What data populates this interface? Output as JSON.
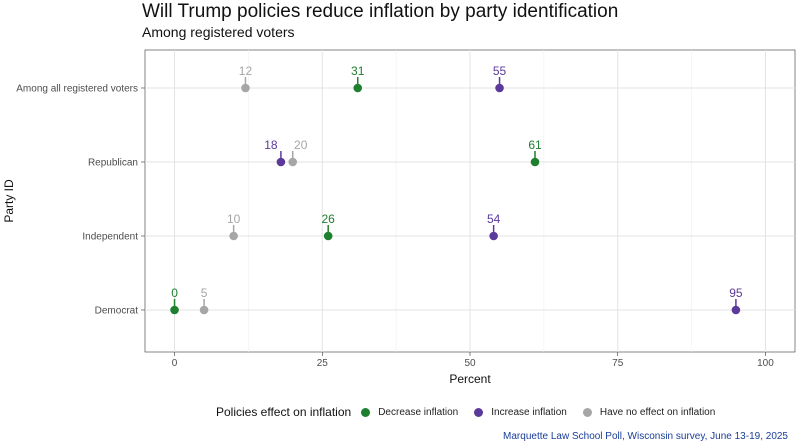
{
  "chart_data": {
    "type": "scatter",
    "title": "Will Trump policies reduce inflation by party identification",
    "subtitle": "Among registered voters",
    "xlabel": "Percent",
    "ylabel": "Party ID",
    "xlim": [
      -5,
      105
    ],
    "x_ticks": [
      "0",
      "25",
      "50",
      "75",
      "100"
    ],
    "categories": [
      "Among all registered voters",
      "Republican",
      "Independent",
      "Democrat"
    ],
    "grid": true,
    "legend_title": "Policies effect on inflation",
    "legend_position": "bottom",
    "series": [
      {
        "name": "Decrease inflation",
        "color": "#1e7f2e",
        "values": [
          31,
          61,
          26,
          0
        ]
      },
      {
        "name": "Increase inflation",
        "color": "#5b3a9b",
        "values": [
          55,
          18,
          54,
          95
        ]
      },
      {
        "name": "Have no effect on inflation",
        "color": "#a6a6a6",
        "values": [
          12,
          20,
          10,
          5
        ]
      }
    ],
    "caption": "Marquette Law School Poll, Wisconsin survey, June 13-19, 2025"
  }
}
